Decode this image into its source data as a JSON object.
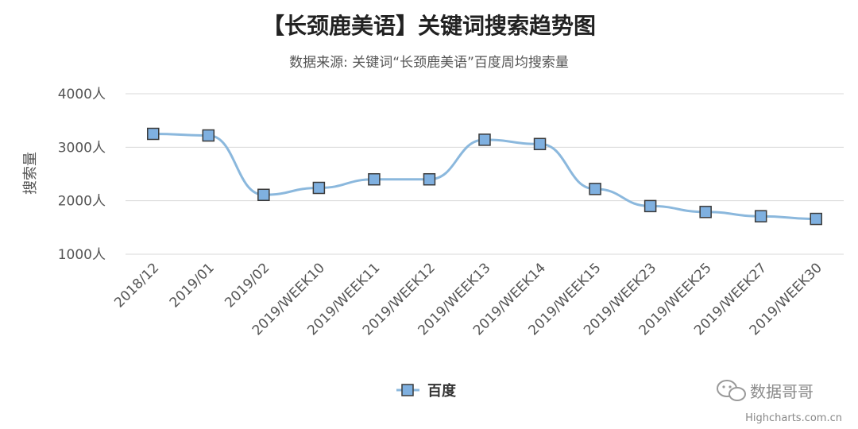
{
  "chart_data": {
    "type": "line",
    "title": "【长颈鹿美语】关键词搜索趋势图",
    "subtitle": "数据来源: 关键词“长颈鹿美语”百度周均搜索量",
    "ylabel": "搜索量",
    "ylim": [
      1000,
      4000
    ],
    "yticks": [
      "1000人",
      "2000人",
      "3000人",
      "4000人"
    ],
    "categories": [
      "2018/12",
      "2019/01",
      "2019/02",
      "2019/WEEK10",
      "2019/WEEK11",
      "2019/WEEK12",
      "2019/WEEK13",
      "2019/WEEK14",
      "2019/WEEK15",
      "2019/WEEK23",
      "2019/WEEK25",
      "2019/WEEK27",
      "2019/WEEK30"
    ],
    "series": [
      {
        "name": "百度",
        "values": [
          3250,
          3220,
          2110,
          2240,
          2400,
          2400,
          3140,
          3060,
          2220,
          1900,
          1790,
          1710,
          1660
        ]
      }
    ],
    "grid": true,
    "legend": "bottom",
    "colors": {
      "line": "#8bb8dd",
      "marker_fill": "#7fb0e0",
      "marker_stroke": "#3a3a3a",
      "grid": "#d9d9d9"
    }
  },
  "watermark": {
    "icon": "wechat-icon",
    "text": "数据哥哥"
  },
  "credit": "Highcharts.com.cn"
}
